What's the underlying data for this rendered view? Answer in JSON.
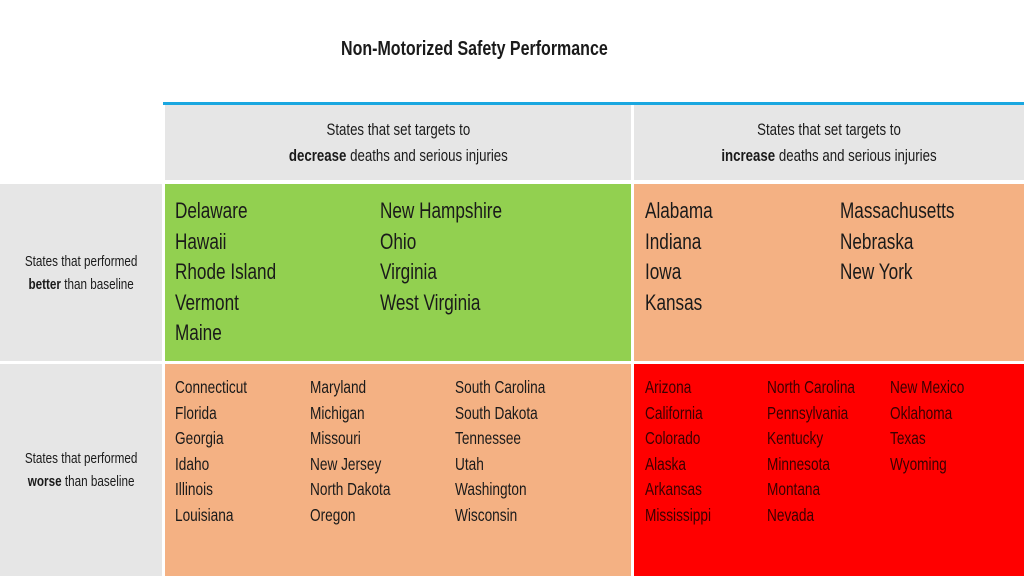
{
  "title": "Non-Motorized Safety Performance",
  "colors": {
    "accent_line": "#1aa7e0",
    "header_bg": "#e6e6e6",
    "green": "#92d050",
    "orange": "#f4b183",
    "red": "#ff0000"
  },
  "columns": [
    {
      "line1": "States that set targets to",
      "bold": "decrease",
      "rest": " deaths and serious injuries"
    },
    {
      "line1": "States that set targets to",
      "bold": "increase",
      "rest": " deaths and serious injuries"
    }
  ],
  "rows": [
    {
      "line1": "States that performed",
      "bold": "better",
      "rest": " than baseline"
    },
    {
      "line1": "States that performed",
      "bold": "worse",
      "rest": " than baseline"
    }
  ],
  "cells": {
    "better_decrease": [
      [
        "Delaware",
        "Hawaii",
        "Rhode Island",
        "Vermont",
        "Maine"
      ],
      [
        "New Hampshire",
        "Ohio",
        "Virginia",
        "West Virginia"
      ]
    ],
    "better_increase": [
      [
        "Alabama",
        "Indiana",
        "Iowa",
        "Kansas"
      ],
      [
        "Massachusetts",
        "Nebraska",
        "New York"
      ]
    ],
    "worse_decrease": [
      [
        "Connecticut",
        "Florida",
        "Georgia",
        "Idaho",
        "Illinois",
        "Louisiana"
      ],
      [
        "Maryland",
        "Michigan",
        "Missouri",
        "New Jersey",
        "North Dakota",
        "Oregon"
      ],
      [
        "South Carolina",
        "South Dakota",
        "Tennessee",
        "Utah",
        "Washington",
        "Wisconsin"
      ]
    ],
    "worse_increase": [
      [
        "Arizona",
        "California",
        "Colorado",
        "Alaska",
        "Arkansas",
        "Mississippi"
      ],
      [
        "North Carolina",
        "Pennsylvania",
        "Kentucky",
        "Minnesota",
        "Montana",
        "Nevada"
      ],
      [
        "New Mexico",
        "Oklahoma",
        "Texas",
        "Wyoming"
      ]
    ]
  }
}
